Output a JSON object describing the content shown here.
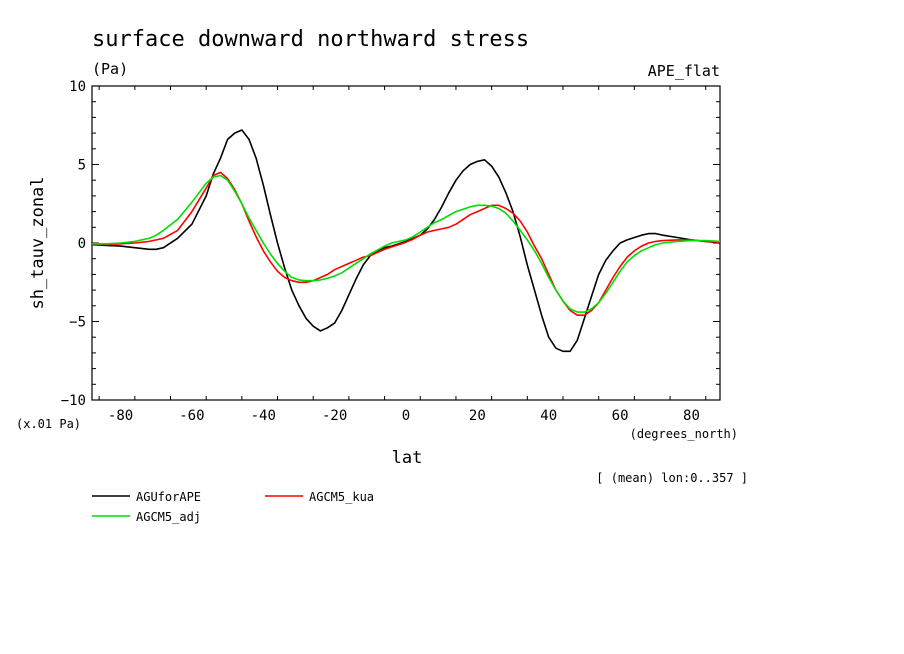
{
  "chart_data": {
    "type": "line",
    "title": "surface downward northward stress",
    "units": "(Pa)",
    "experiment": "APE_flat",
    "scale_note": "(x.01 Pa)",
    "xlabel": "lat",
    "xunits": "(degrees_north)",
    "ylabel": "sh_tauv_zonal",
    "averaging_note": "[ (mean) lon:0..357 ]",
    "xlim": [
      -88,
      88
    ],
    "ylim": [
      -10,
      10
    ],
    "x_ticks": [
      -80,
      -60,
      -40,
      -20,
      0,
      20,
      40,
      60,
      80
    ],
    "y_ticks": [
      -10,
      -5,
      0,
      5,
      10
    ],
    "x": [
      -88,
      -84,
      -80,
      -76,
      -72,
      -70,
      -68,
      -64,
      -60,
      -56,
      -54,
      -52,
      -50,
      -48,
      -46,
      -44,
      -42,
      -40,
      -38,
      -36,
      -34,
      -32,
      -30,
      -28,
      -26,
      -24,
      -22,
      -20,
      -18,
      -16,
      -14,
      -12,
      -10,
      -8,
      -6,
      -4,
      -2,
      0,
      2,
      4,
      6,
      8,
      10,
      12,
      14,
      16,
      18,
      20,
      22,
      24,
      26,
      28,
      30,
      32,
      34,
      36,
      38,
      40,
      42,
      44,
      46,
      48,
      50,
      52,
      54,
      56,
      58,
      60,
      62,
      64,
      66,
      68,
      70,
      72,
      76,
      80,
      84,
      88
    ],
    "series": [
      {
        "name": "AGUforAPE",
        "color": "#000000",
        "values": [
          -0.1,
          -0.15,
          -0.2,
          -0.3,
          -0.4,
          -0.4,
          -0.3,
          0.3,
          1.2,
          3.0,
          4.4,
          5.4,
          6.6,
          7.0,
          7.2,
          6.6,
          5.4,
          3.7,
          1.8,
          0.0,
          -1.6,
          -3.0,
          -4.0,
          -4.8,
          -5.3,
          -5.6,
          -5.4,
          -5.1,
          -4.3,
          -3.3,
          -2.3,
          -1.4,
          -0.8,
          -0.5,
          -0.3,
          -0.2,
          -0.05,
          0.1,
          0.3,
          0.5,
          0.9,
          1.5,
          2.3,
          3.2,
          4.0,
          4.6,
          5.0,
          5.2,
          5.3,
          4.9,
          4.2,
          3.2,
          2.0,
          0.4,
          -1.4,
          -3.0,
          -4.6,
          -6.0,
          -6.7,
          -6.9,
          -6.9,
          -6.2,
          -4.8,
          -3.4,
          -2.0,
          -1.1,
          -0.5,
          0.0,
          0.2,
          0.35,
          0.5,
          0.6,
          0.6,
          0.5,
          0.35,
          0.2,
          0.1,
          0.0
        ]
      },
      {
        "name": "AGCM5_kua",
        "color": "#ff0000",
        "values": [
          -0.05,
          -0.1,
          -0.05,
          0.0,
          0.1,
          0.2,
          0.3,
          0.8,
          2.0,
          3.5,
          4.3,
          4.5,
          4.1,
          3.4,
          2.5,
          1.4,
          0.4,
          -0.5,
          -1.2,
          -1.8,
          -2.2,
          -2.4,
          -2.5,
          -2.5,
          -2.4,
          -2.2,
          -2.0,
          -1.7,
          -1.5,
          -1.3,
          -1.1,
          -0.9,
          -0.8,
          -0.6,
          -0.4,
          -0.25,
          -0.1,
          0.05,
          0.25,
          0.5,
          0.7,
          0.8,
          0.9,
          1.0,
          1.2,
          1.5,
          1.8,
          2.0,
          2.2,
          2.4,
          2.4,
          2.2,
          1.9,
          1.4,
          0.7,
          -0.2,
          -1.0,
          -2.0,
          -3.0,
          -3.7,
          -4.3,
          -4.6,
          -4.6,
          -4.3,
          -3.8,
          -3.0,
          -2.2,
          -1.5,
          -0.9,
          -0.5,
          -0.2,
          0.0,
          0.1,
          0.15,
          0.2,
          0.2,
          0.1,
          0.05
        ]
      },
      {
        "name": "AGCM5_adj",
        "color": "#00dd00",
        "values": [
          -0.05,
          -0.05,
          0.0,
          0.1,
          0.3,
          0.5,
          0.8,
          1.5,
          2.6,
          3.8,
          4.2,
          4.3,
          4.0,
          3.3,
          2.5,
          1.6,
          0.8,
          0.0,
          -0.7,
          -1.3,
          -1.8,
          -2.2,
          -2.35,
          -2.4,
          -2.4,
          -2.35,
          -2.25,
          -2.1,
          -1.9,
          -1.6,
          -1.3,
          -1.0,
          -0.7,
          -0.45,
          -0.2,
          0.0,
          0.1,
          0.2,
          0.4,
          0.7,
          1.0,
          1.3,
          1.5,
          1.75,
          2.0,
          2.15,
          2.3,
          2.4,
          2.4,
          2.35,
          2.2,
          1.9,
          1.4,
          0.8,
          0.2,
          -0.5,
          -1.3,
          -2.2,
          -3.0,
          -3.7,
          -4.2,
          -4.4,
          -4.4,
          -4.2,
          -3.8,
          -3.2,
          -2.5,
          -1.8,
          -1.2,
          -0.8,
          -0.5,
          -0.3,
          -0.1,
          0.0,
          0.1,
          0.15,
          0.15,
          0.1
        ]
      }
    ]
  }
}
